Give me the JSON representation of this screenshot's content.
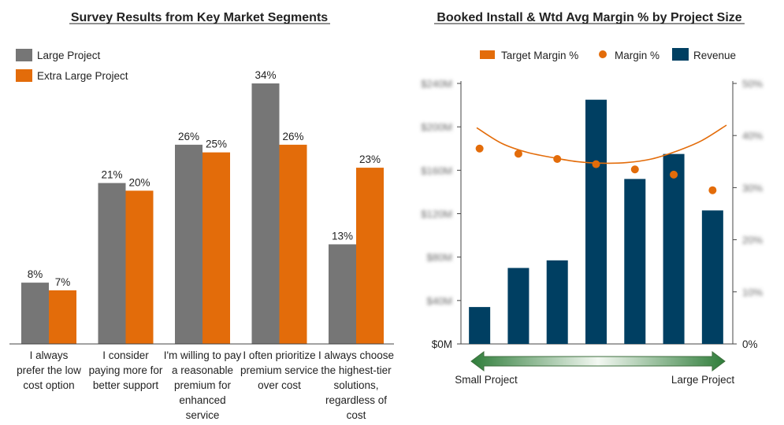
{
  "chart_data": [
    {
      "type": "bar",
      "title": "Survey Results from Key Market Segments",
      "categories": [
        [
          "I always",
          "prefer the low",
          "cost option"
        ],
        [
          "I consider",
          "paying more for",
          "better support"
        ],
        [
          "I'm willing to pay",
          "a reasonable",
          "premium for",
          "enhanced",
          "service"
        ],
        [
          "I often prioritize",
          "premium service",
          "over cost"
        ],
        [
          "I always choose",
          "the highest-tier",
          "solutions,",
          "regardless of",
          "cost"
        ]
      ],
      "series": [
        {
          "name": "Large Project",
          "color": "#767676",
          "values": [
            8,
            21,
            26,
            34,
            13
          ]
        },
        {
          "name": "Extra Large Project",
          "color": "#E36C0A",
          "values": [
            7,
            20,
            25,
            26,
            23
          ]
        }
      ],
      "value_suffix": "%",
      "ylim": [
        0,
        34
      ],
      "legend": "top-left"
    },
    {
      "type": "bar",
      "title": "Booked Install & Wtd Avg Margin % by Project Size",
      "legend_entries": [
        "Target Margin %",
        "Margin %",
        "Revenue"
      ],
      "colors": {
        "revenue": "#003F62",
        "margin": "#E36C0A",
        "target": "#E36C0A"
      },
      "y_left": {
        "ticks": [
          "$0M",
          "$40M",
          "$80M",
          "$120M",
          "$160M",
          "$200M",
          "$240M"
        ],
        "ylim": [
          0,
          240
        ]
      },
      "y_right": {
        "ticks": [
          "0%",
          "10%",
          "20%",
          "30%",
          "40%",
          "50%"
        ],
        "ylim": [
          0,
          50
        ]
      },
      "revenue": [
        34,
        70,
        77,
        225,
        152,
        175,
        123
      ],
      "margin_pct": [
        37.5,
        36.5,
        35.5,
        34.5,
        33.5,
        32.5,
        29.5
      ],
      "target_margin_pct": [
        41.5,
        38.5,
        36.8,
        35.8,
        35.0,
        34.7,
        34.8,
        35.5,
        37.0,
        39.0,
        42.0
      ],
      "x_arrow": {
        "left_label": "Small Project",
        "right_label": "Large Project"
      }
    }
  ]
}
